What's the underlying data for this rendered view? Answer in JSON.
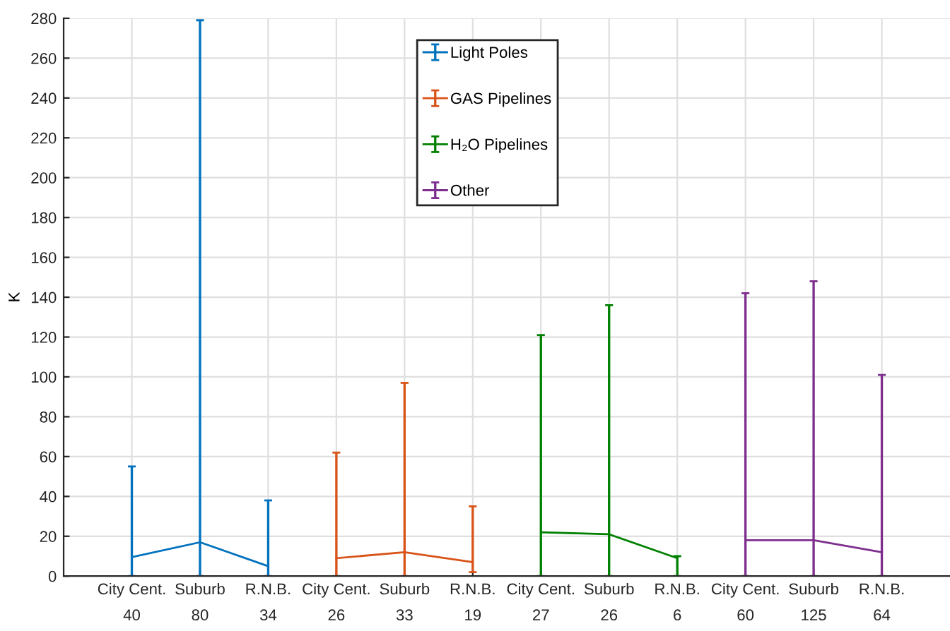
{
  "chart_data": {
    "type": "line",
    "ylabel": "K",
    "categories": [
      "City Cent.\n40",
      "Suburb\n80",
      "R.N.B.\n34",
      "City Cent.\n26",
      "Suburb\n33",
      "R.N.B.\n19",
      "City Cent.\n27",
      "Suburb\n26",
      "R.N.B.\n6",
      "City Cent.\n60",
      "Suburb\n125",
      "R.N.B.\n64"
    ],
    "ylim": [
      0,
      280
    ],
    "yticks": [
      0,
      20,
      40,
      60,
      80,
      100,
      120,
      140,
      160,
      180,
      200,
      220,
      240,
      260,
      280
    ],
    "grid": true,
    "legend": "top",
    "marker": "none",
    "line_style": "solid",
    "series": [
      {
        "name": "Light Poles",
        "color": "#0072bd",
        "values": [
          9.5,
          17,
          5,
          null,
          null,
          null,
          null,
          null,
          null,
          null,
          null,
          null
        ],
        "errors": [
          [
            0,
            55
          ],
          [
            0,
            279
          ],
          [
            0,
            38
          ],
          null,
          null,
          null,
          null,
          null,
          null,
          null,
          null,
          null
        ]
      },
      {
        "name": "GAS Pipelines",
        "color": "#d95319",
        "values": [
          null,
          null,
          null,
          9,
          12,
          7,
          null,
          null,
          null,
          null,
          null,
          null
        ],
        "errors": [
          null,
          null,
          null,
          [
            0,
            62
          ],
          [
            0,
            97
          ],
          [
            2,
            35
          ],
          null,
          null,
          null,
          null,
          null,
          null
        ]
      },
      {
        "name": "H₂O Pipelines",
        "color": "#008000",
        "values": [
          null,
          null,
          null,
          null,
          null,
          null,
          22,
          21,
          9,
          null,
          null,
          null
        ],
        "errors": [
          null,
          null,
          null,
          null,
          null,
          null,
          [
            0,
            121
          ],
          [
            0,
            136
          ],
          [
            0,
            10
          ],
          null,
          null,
          null
        ]
      },
      {
        "name": "Other",
        "color": "#7e2f8e",
        "values": [
          null,
          null,
          null,
          null,
          null,
          null,
          null,
          null,
          null,
          18,
          18,
          12
        ],
        "errors": [
          null,
          null,
          null,
          null,
          null,
          null,
          null,
          null,
          null,
          [
            0,
            142
          ],
          [
            0,
            148
          ],
          [
            0,
            101
          ]
        ]
      }
    ]
  }
}
